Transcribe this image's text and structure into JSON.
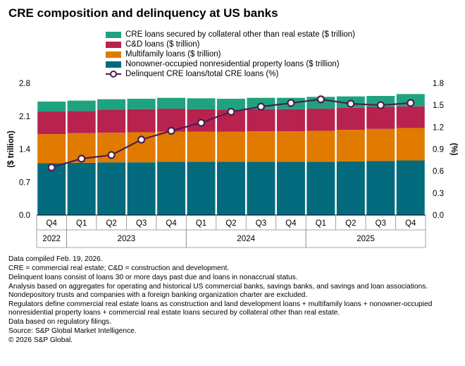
{
  "title": "CRE composition and delinquency at US banks",
  "legend": [
    {
      "label": "CRE loans secured by collateral other than real estate ($ trillion)",
      "color": "#1fa37f",
      "kind": "bar"
    },
    {
      "label": "C&D loans ($ trillion)",
      "color": "#b8224f",
      "kind": "bar"
    },
    {
      "label": "Multifamily loans ($ trillion)",
      "color": "#e07b00",
      "kind": "bar"
    },
    {
      "label": "Nonowner-occupied nonresidential property loans ($ trillion)",
      "color": "#046a7e",
      "kind": "bar"
    },
    {
      "label": "Delinquent CRE loans/total CRE loans (%)",
      "color": "#4a1f50",
      "kind": "line"
    }
  ],
  "chart_data": {
    "type": "bar",
    "stacked": true,
    "categories": [
      "Q4 2022",
      "Q1 2023",
      "Q2 2023",
      "Q3 2023",
      "Q4 2023",
      "Q1 2024",
      "Q2 2024",
      "Q3 2024",
      "Q4 2024",
      "Q1 2025",
      "Q2 2025",
      "Q3 2025",
      "Q4 2025"
    ],
    "quarter_labels": [
      "Q4",
      "Q1",
      "Q2",
      "Q3",
      "Q4",
      "Q1",
      "Q2",
      "Q3",
      "Q4",
      "Q1",
      "Q2",
      "Q3",
      "Q4"
    ],
    "year_groups": [
      {
        "label": "2022",
        "start": 0,
        "end": 0
      },
      {
        "label": "2023",
        "start": 1,
        "end": 4
      },
      {
        "label": "2024",
        "start": 5,
        "end": 8
      },
      {
        "label": "2025",
        "start": 9,
        "end": 12
      }
    ],
    "series": [
      {
        "name": "Nonowner-occupied nonresidential property loans ($ trillion)",
        "color": "#046a7e",
        "values": [
          1.1,
          1.11,
          1.12,
          1.12,
          1.13,
          1.13,
          1.13,
          1.13,
          1.13,
          1.13,
          1.14,
          1.15,
          1.16
        ]
      },
      {
        "name": "Multifamily loans ($ trillion)",
        "color": "#e07b00",
        "values": [
          0.62,
          0.63,
          0.63,
          0.64,
          0.64,
          0.64,
          0.64,
          0.65,
          0.65,
          0.66,
          0.67,
          0.68,
          0.69
        ]
      },
      {
        "name": "C&D loans ($ trillion)",
        "color": "#b8224f",
        "values": [
          0.48,
          0.47,
          0.49,
          0.49,
          0.49,
          0.48,
          0.47,
          0.47,
          0.47,
          0.47,
          0.47,
          0.47,
          0.46
        ]
      },
      {
        "name": "CRE loans secured by collateral other than real estate ($ trillion)",
        "color": "#1fa37f",
        "values": [
          0.21,
          0.22,
          0.22,
          0.22,
          0.23,
          0.23,
          0.23,
          0.24,
          0.24,
          0.25,
          0.24,
          0.23,
          0.26
        ]
      }
    ],
    "line_series": {
      "name": "Delinquent CRE loans/total CRE loans (%)",
      "color": "#4a1f50",
      "values": [
        0.65,
        0.77,
        0.82,
        1.03,
        1.15,
        1.26,
        1.41,
        1.48,
        1.53,
        1.58,
        1.52,
        1.5,
        1.53
      ]
    },
    "ylabel": "($ trillion)",
    "y2label": "(%)",
    "ylim": [
      0,
      2.8
    ],
    "yticks": [
      "0.0",
      "0.7",
      "1.4",
      "2.1",
      "2.8"
    ],
    "y2lim": [
      0,
      1.8
    ],
    "y2ticks": [
      "0.0",
      "0.3",
      "0.6",
      "0.9",
      "1.2",
      "1.5",
      "1.8"
    ],
    "grid": false
  },
  "footnotes": [
    "Data compiled Feb. 19, 2026.",
    "CRE = commercial real estate; C&D = construction and development.",
    "Delinquent loans consist of loans 30 or more days past due and loans in nonaccrual status.",
    "Analysis based on aggregates for operating and historical US commercial banks, savings banks, and savings and loan associations. Nondepository trusts and companies with a foreign banking organization charter are excluded.",
    "Regulators define commercial real estate loans as construction and land development loans + multifamily loans + nonowner-occupied nonresidential property loans + commercial real estate loans secured by collateral other than real estate.",
    "Data based on regulatory filings.",
    "Source: S&P Global Market Intelligence.",
    "© 2026 S&P Global."
  ]
}
